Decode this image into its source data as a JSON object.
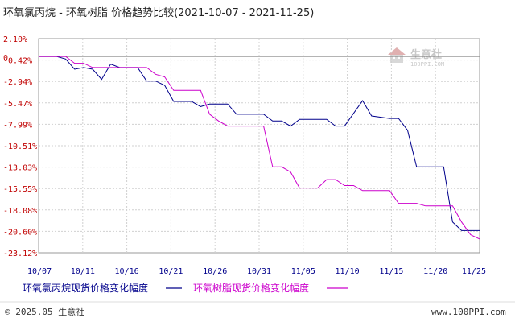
{
  "chart_data": {
    "type": "line",
    "title": "环氧氯丙烷 - 环氧树脂 价格趋势比较(2021-10-07 - 2021-11-25)",
    "ylim": [
      -23.12,
      2.1
    ],
    "y_ticks": [
      "2.10%",
      "-0.42%",
      "-2.94%",
      "-5.47%",
      "-7.99%",
      "-10.51%",
      "-13.03%",
      "-15.55%",
      "-18.08%",
      "-20.60%",
      "-23.12%"
    ],
    "zero_label": "0",
    "xlim": [
      "2021-10-07",
      "2021-11-25"
    ],
    "x_ticks": [
      "10/07",
      "10/11",
      "10/16",
      "10/21",
      "10/26",
      "10/31",
      "11/05",
      "11/10",
      "11/15",
      "11/20",
      "11/25"
    ],
    "grid": true,
    "legend_position": "bottom",
    "series": [
      {
        "name": "环氧氯丙烷现货价格变化幅度",
        "color": "#00008b",
        "points": [
          [
            "2021-10-07",
            0
          ],
          [
            "2021-10-09",
            0
          ],
          [
            "2021-10-10",
            -0.3
          ],
          [
            "2021-10-11",
            -1.5
          ],
          [
            "2021-10-12",
            -1.3
          ],
          [
            "2021-10-13",
            -1.5
          ],
          [
            "2021-10-14",
            -2.7
          ],
          [
            "2021-10-15",
            -0.9
          ],
          [
            "2021-10-16",
            -1.3
          ],
          [
            "2021-10-18",
            -1.3
          ],
          [
            "2021-10-19",
            -2.9
          ],
          [
            "2021-10-20",
            -2.9
          ],
          [
            "2021-10-21",
            -3.4
          ],
          [
            "2021-10-22",
            -5.3
          ],
          [
            "2021-10-24",
            -5.3
          ],
          [
            "2021-10-25",
            -5.9
          ],
          [
            "2021-10-26",
            -5.6
          ],
          [
            "2021-10-28",
            -5.6
          ],
          [
            "2021-10-29",
            -6.8
          ],
          [
            "2021-11-01",
            -6.8
          ],
          [
            "2021-11-02",
            -7.6
          ],
          [
            "2021-11-03",
            -7.6
          ],
          [
            "2021-11-04",
            -8.2
          ],
          [
            "2021-11-05",
            -7.4
          ],
          [
            "2021-11-08",
            -7.4
          ],
          [
            "2021-11-09",
            -8.2
          ],
          [
            "2021-11-10",
            -8.2
          ],
          [
            "2021-11-12",
            -5.2
          ],
          [
            "2021-11-13",
            -7.0
          ],
          [
            "2021-11-15",
            -7.3
          ],
          [
            "2021-11-16",
            -7.3
          ],
          [
            "2021-11-17",
            -8.7
          ],
          [
            "2021-11-18",
            -13.0
          ],
          [
            "2021-11-21",
            -13.0
          ],
          [
            "2021-11-22",
            -19.5
          ],
          [
            "2021-11-23",
            -20.5
          ],
          [
            "2021-11-25",
            -20.5
          ]
        ]
      },
      {
        "name": "环氧树脂现货价格变化幅度",
        "color": "#cc00cc",
        "points": [
          [
            "2021-10-07",
            0
          ],
          [
            "2021-10-10",
            0
          ],
          [
            "2021-10-11",
            -0.8
          ],
          [
            "2021-10-12",
            -0.8
          ],
          [
            "2021-10-13",
            -1.3
          ],
          [
            "2021-10-19",
            -1.3
          ],
          [
            "2021-10-20",
            -2.1
          ],
          [
            "2021-10-21",
            -2.4
          ],
          [
            "2021-10-22",
            -4.0
          ],
          [
            "2021-10-25",
            -4.0
          ],
          [
            "2021-10-26",
            -6.8
          ],
          [
            "2021-10-27",
            -7.6
          ],
          [
            "2021-10-28",
            -8.2
          ],
          [
            "2021-11-01",
            -8.2
          ],
          [
            "2021-11-02",
            -13.0
          ],
          [
            "2021-11-03",
            -13.0
          ],
          [
            "2021-11-04",
            -13.6
          ],
          [
            "2021-11-05",
            -15.5
          ],
          [
            "2021-11-07",
            -15.5
          ],
          [
            "2021-11-08",
            -14.5
          ],
          [
            "2021-11-09",
            -14.5
          ],
          [
            "2021-11-10",
            -15.2
          ],
          [
            "2021-11-11",
            -15.2
          ],
          [
            "2021-11-12",
            -15.8
          ],
          [
            "2021-11-15",
            -15.8
          ],
          [
            "2021-11-16",
            -17.3
          ],
          [
            "2021-11-18",
            -17.3
          ],
          [
            "2021-11-19",
            -17.6
          ],
          [
            "2021-11-22",
            -17.6
          ],
          [
            "2021-11-23",
            -19.5
          ],
          [
            "2021-11-24",
            -21.0
          ],
          [
            "2021-11-25",
            -21.5
          ]
        ]
      }
    ]
  },
  "watermark": {
    "name": "生意社",
    "url": "100PPI.COM"
  },
  "footer": {
    "left": "© 2025.05 生意社",
    "right": "www.100PPI.com"
  }
}
